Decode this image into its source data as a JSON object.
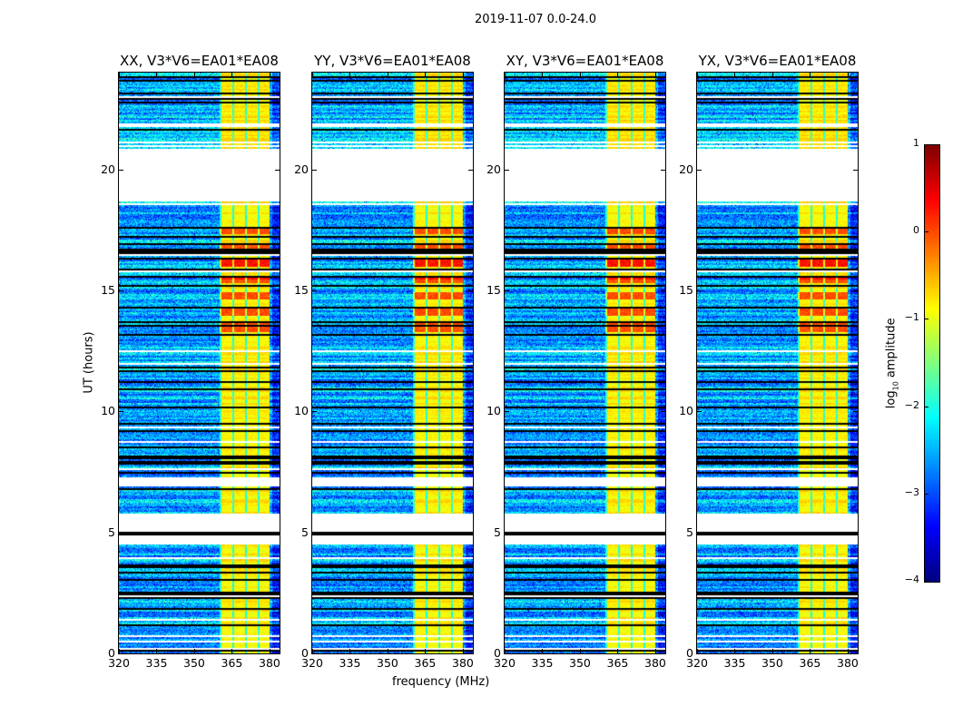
{
  "chart_data": {
    "type": "heatmap",
    "title": "2019-11-07 0.0-24.0",
    "xlabel": "frequency (MHz)",
    "ylabel": "UT (hours)",
    "xlim": [
      320,
      384
    ],
    "ylim": [
      0,
      24
    ],
    "xticks": [
      "320",
      "335",
      "350",
      "365",
      "380"
    ],
    "xtick_values": [
      320,
      335,
      350,
      365,
      380
    ],
    "yticks": [
      "0",
      "5",
      "10",
      "15",
      "20"
    ],
    "ytick_values": [
      0,
      5,
      10,
      15,
      20
    ],
    "panels": [
      {
        "title": "XX, V3*V6=EA01*EA08",
        "seed": 11
      },
      {
        "title": "YY, V3*V6=EA01*EA08",
        "seed": 23
      },
      {
        "title": "XY, V3*V6=EA01*EA08",
        "seed": 37
      },
      {
        "title": "YX, V3*V6=EA01*EA08",
        "seed": 51
      }
    ],
    "flagged_time_ranges_hours": [
      [
        18.7,
        20.85
      ],
      [
        4.55,
        4.95
      ],
      [
        5.05,
        5.85
      ],
      [
        6.95,
        7.35
      ]
    ],
    "rfi_band_mhz": [
      360,
      380
    ],
    "rfi_strong_time_hours": [
      13.0,
      17.6
    ],
    "background_log_amplitude": -2.5,
    "rfi_log_amplitude": -0.8,
    "rfi_peak_log_amplitude": 0.3,
    "colorbar": {
      "label": "log10 amplitude",
      "label_main": "log",
      "label_sub": "10",
      "label_rest": " amplitude",
      "range": [
        -4,
        1
      ],
      "ticks": [
        "1",
        "0",
        "−1",
        "−2",
        "−3",
        "−4"
      ],
      "tick_values": [
        1,
        0,
        -1,
        -2,
        -3,
        -4
      ],
      "colormap": "jet"
    }
  }
}
